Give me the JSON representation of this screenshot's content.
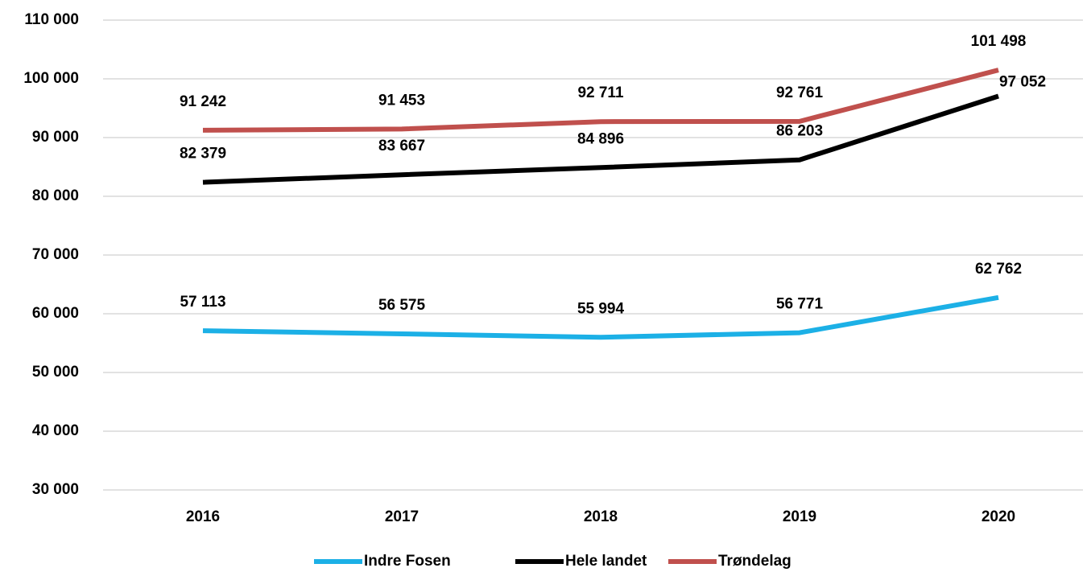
{
  "chart_data": {
    "type": "line",
    "categories": [
      "2016",
      "2017",
      "2018",
      "2019",
      "2020"
    ],
    "series": [
      {
        "name": "Indre Fosen",
        "color": "#1cb0e6",
        "values": [
          57113,
          56575,
          55994,
          56771,
          62762
        ],
        "value_labels": [
          "57 113",
          "56 575",
          "55 994",
          "56 771",
          "62 762"
        ]
      },
      {
        "name": "Hele landet",
        "color": "#000000",
        "values": [
          82379,
          83667,
          84896,
          86203,
          97052
        ],
        "value_labels": [
          "82 379",
          "83 667",
          "84 896",
          "86 203",
          "97 052"
        ]
      },
      {
        "name": "Trøndelag",
        "color": "#c0504d",
        "values": [
          91242,
          91453,
          92711,
          92761,
          101498
        ],
        "value_labels": [
          "91 242",
          "91 453",
          "92 711",
          "92 761",
          "101 498"
        ]
      }
    ],
    "ylim": [
      30000,
      110000
    ],
    "yticks": [
      {
        "value": 30000,
        "label": "30 000"
      },
      {
        "value": 40000,
        "label": "40 000"
      },
      {
        "value": 50000,
        "label": "50 000"
      },
      {
        "value": 60000,
        "label": "60 000"
      },
      {
        "value": 70000,
        "label": "70 000"
      },
      {
        "value": 80000,
        "label": "80 000"
      },
      {
        "value": 90000,
        "label": "90 000"
      },
      {
        "value": 100000,
        "label": "100 000"
      },
      {
        "value": 110000,
        "label": "110 000"
      }
    ],
    "grid": true,
    "legend": "bottom"
  }
}
